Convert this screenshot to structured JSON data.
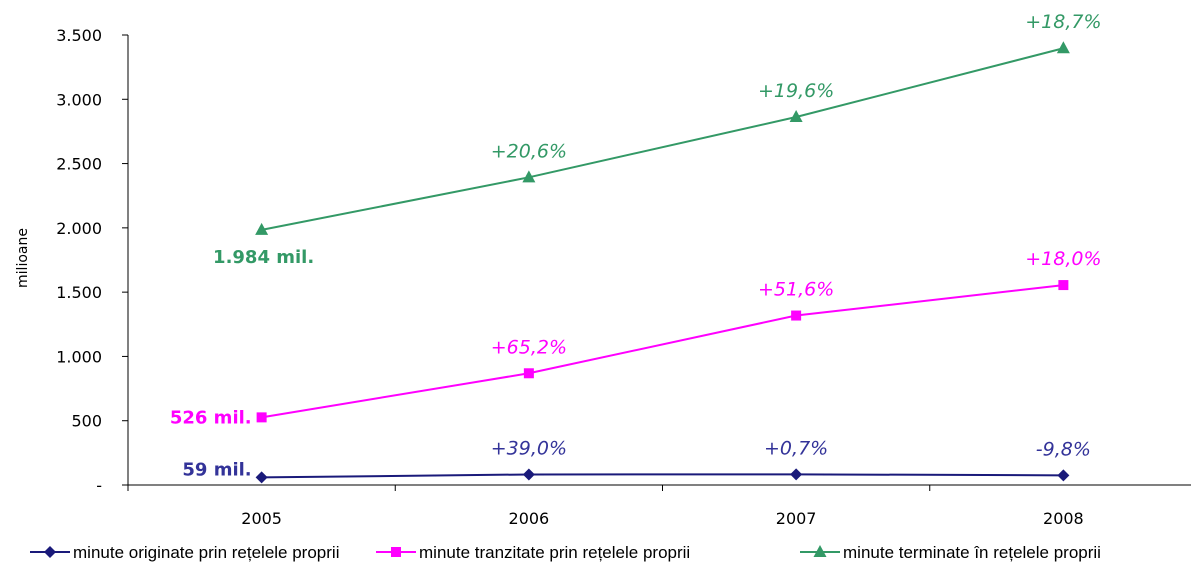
{
  "chart_data": {
    "type": "line",
    "title": "",
    "xlabel": "",
    "ylabel": "milioane",
    "categories": [
      "2005",
      "2006",
      "2007",
      "2008"
    ],
    "ylim": [
      0,
      3500
    ],
    "yticks": [
      0,
      500,
      1000,
      1500,
      2000,
      2500,
      3000,
      3500
    ],
    "ytick_labels": [
      "-",
      "500",
      "1.000",
      "1.500",
      "2.000",
      "2.500",
      "3.000",
      "3.500"
    ],
    "grid": false,
    "legend_position": "bottom",
    "series": [
      {
        "name": "minute originate prin rețelele proprii",
        "color": "#1a1a7a",
        "label_color": "#333399",
        "marker": "diamond",
        "values": [
          59,
          82,
          83,
          75
        ],
        "start_label": "59 mil.",
        "growth_labels": [
          "",
          "+39,0%",
          "+0,7%",
          "-9,8%"
        ]
      },
      {
        "name": "minute tranzitate prin rețelele proprii",
        "color": "#ff00ff",
        "label_color": "#ff00ff",
        "marker": "square",
        "values": [
          526,
          869,
          1318,
          1555
        ],
        "start_label": "526 mil.",
        "growth_labels": [
          "",
          "+65,2%",
          "+51,6%",
          "+18,0%"
        ]
      },
      {
        "name": "minute terminate în rețelele proprii",
        "color": "#339966",
        "label_color": "#339966",
        "marker": "triangle",
        "values": [
          1984,
          2393,
          2862,
          3397
        ],
        "start_label": "1.984 mil.",
        "growth_labels": [
          "",
          "+20,6%",
          "+19,6%",
          "+18,7%"
        ]
      }
    ]
  }
}
